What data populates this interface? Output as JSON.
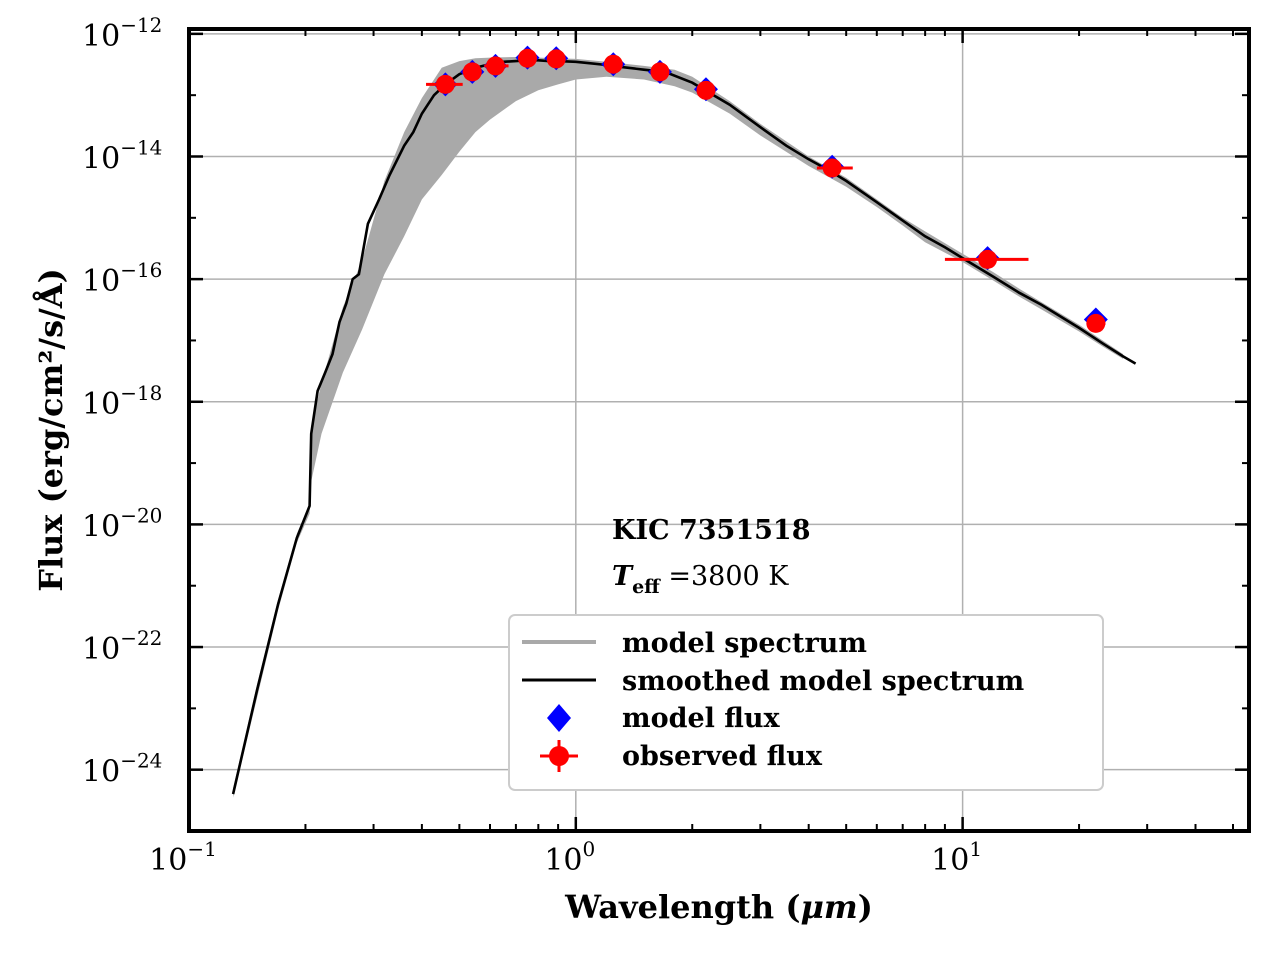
{
  "chart_data": {
    "type": "scatter",
    "xscale": "log",
    "yscale": "log",
    "xlim": [
      0.1,
      55
    ],
    "ylim": [
      1e-25,
      1.2e-12
    ],
    "xlabel_text": "Wavelength (",
    "xlabel_unit": "μm",
    "xlabel_close": ")",
    "ylabel": "Flux (erg/cm²/s/Å)",
    "x_ticks": [
      {
        "base": "10",
        "exp": "−1",
        "value": 0.1
      },
      {
        "base": "10",
        "exp": "0",
        "value": 1
      },
      {
        "base": "10",
        "exp": "1",
        "value": 10
      }
    ],
    "y_ticks": [
      {
        "base": "10",
        "exp": "−12",
        "value": 1e-12
      },
      {
        "base": "10",
        "exp": "−14",
        "value": 1e-14
      },
      {
        "base": "10",
        "exp": "−16",
        "value": 1e-16
      },
      {
        "base": "10",
        "exp": "−18",
        "value": 1e-18
      },
      {
        "base": "10",
        "exp": "−20",
        "value": 1e-20
      },
      {
        "base": "10",
        "exp": "−22",
        "value": 1e-22
      },
      {
        "base": "10",
        "exp": "−24",
        "value": 1e-24
      }
    ],
    "grid": true,
    "annotation": {
      "star": "KIC 7351518",
      "teff_symbol": "T",
      "teff_sub": "eff",
      "teff_eq": " =",
      "teff_value": "3800 K"
    },
    "legend": {
      "position": "lower-center",
      "entries": [
        {
          "label": "model spectrum",
          "marker": "line",
          "color": "#a9a9a9"
        },
        {
          "label": "smoothed model spectrum",
          "marker": "line",
          "color": "#000000"
        },
        {
          "label": "model flux",
          "marker": "diamond",
          "color": "#0000ff"
        },
        {
          "label": "observed flux",
          "marker": "errorbar-circle",
          "color": "#ff0000"
        }
      ]
    },
    "series": [
      {
        "name": "smoothed model spectrum",
        "color": "#000000",
        "x": [
          0.13,
          0.15,
          0.17,
          0.19,
          0.205,
          0.207,
          0.215,
          0.225,
          0.235,
          0.245,
          0.255,
          0.265,
          0.275,
          0.29,
          0.31,
          0.33,
          0.36,
          0.38,
          0.4,
          0.43,
          0.46,
          0.5,
          0.55,
          0.6,
          0.65,
          0.7,
          0.75,
          0.8,
          0.85,
          0.9,
          1.0,
          1.1,
          1.2,
          1.3,
          1.5,
          1.7,
          2.0,
          2.5,
          3.0,
          3.5,
          4.0,
          4.5,
          5.0,
          6.0,
          7.0,
          8.0,
          9.0,
          10.0,
          12.0,
          14.0,
          16.0,
          20.0,
          23.0,
          26.0,
          28.0
        ],
        "y": [
          4e-25,
          2e-23,
          5e-22,
          6e-21,
          2e-20,
          3e-19,
          1.5e-18,
          3e-18,
          6e-18,
          2e-17,
          4e-17,
          1e-16,
          1.2e-16,
          8e-16,
          2e-15,
          5e-15,
          1.5e-14,
          2.5e-14,
          5e-14,
          1e-13,
          1.5e-13,
          2.2e-13,
          2.8e-13,
          3.2e-13,
          3.5e-13,
          3.6e-13,
          3.7e-13,
          3.7e-13,
          3.6e-13,
          3.6e-13,
          3.5e-13,
          3.3e-13,
          3.1e-13,
          2.9e-13,
          2.6e-13,
          2.4e-13,
          1.6e-13,
          7e-14,
          3e-14,
          1.5e-14,
          9e-15,
          6e-15,
          4e-15,
          1.8e-15,
          9e-16,
          5e-16,
          3.3e-16,
          2.2e-16,
          1.1e-16,
          6e-17,
          3.8e-17,
          1.6e-17,
          9e-18,
          5.5e-18,
          4.2e-18
        ]
      },
      {
        "name": "model spectrum",
        "color": "#a9a9a9",
        "x": [
          0.13,
          0.15,
          0.17,
          0.19,
          0.205,
          0.207,
          0.22,
          0.25,
          0.28,
          0.32,
          0.36,
          0.4,
          0.45,
          0.5,
          0.55,
          0.6,
          0.7,
          0.8,
          0.9,
          1.0,
          1.2,
          1.5,
          1.8,
          2.0,
          2.5,
          3.0,
          4.0,
          5.0,
          6.0,
          7.0,
          8.0,
          10.0,
          12.0,
          14.0,
          16.0,
          20.0,
          23.0,
          26.0
        ],
        "y_upper": [
          5e-25,
          2.5e-23,
          6e-22,
          7e-21,
          2.2e-20,
          4e-19,
          2e-18,
          3.5e-17,
          2e-16,
          4e-15,
          2.5e-14,
          9e-14,
          2.8e-13,
          3.6e-13,
          4e-13,
          4.1e-13,
          4.2e-13,
          4.1e-13,
          4e-13,
          3.9e-13,
          3.5e-13,
          3e-13,
          2.6e-13,
          2e-13,
          8e-14,
          3.4e-14,
          1e-14,
          4.5e-15,
          2e-15,
          1e-15,
          6e-16,
          2.6e-16,
          1.3e-16,
          7e-17,
          4.2e-17,
          1.8e-17,
          1e-17,
          6e-18
        ],
        "y_lower": [
          3.5e-25,
          1.5e-23,
          4e-22,
          5e-21,
          1.5e-20,
          5e-20,
          3e-19,
          3e-18,
          1.5e-17,
          1.2e-16,
          5e-16,
          2e-15,
          5e-15,
          1.2e-14,
          2.5e-14,
          4e-14,
          8e-14,
          1.2e-13,
          1.5e-13,
          1.8e-13,
          2e-13,
          1.8e-13,
          1.4e-13,
          1.1e-13,
          5e-14,
          2.2e-14,
          7e-15,
          3.2e-15,
          1.5e-15,
          7.5e-16,
          4e-16,
          1.9e-16,
          9.5e-17,
          5.2e-17,
          3.2e-17,
          1.4e-17,
          8e-18,
          5e-18
        ]
      },
      {
        "name": "model flux",
        "color": "#0000ff",
        "points": [
          {
            "x": 0.46,
            "y": 1.5e-13
          },
          {
            "x": 0.54,
            "y": 2.4e-13
          },
          {
            "x": 0.62,
            "y": 3e-13
          },
          {
            "x": 0.75,
            "y": 4.1e-13
          },
          {
            "x": 0.89,
            "y": 4e-13
          },
          {
            "x": 1.25,
            "y": 3.2e-13
          },
          {
            "x": 1.65,
            "y": 2.4e-13
          },
          {
            "x": 2.17,
            "y": 1.25e-13
          },
          {
            "x": 4.6,
            "y": 6.8e-15
          },
          {
            "x": 11.6,
            "y": 2.2e-16
          },
          {
            "x": 22.1,
            "y": 2.2e-17
          }
        ]
      },
      {
        "name": "observed flux",
        "color": "#ff0000",
        "points": [
          {
            "x": 0.46,
            "y": 1.5e-13,
            "xerr": [
              0.41,
              0.51
            ]
          },
          {
            "x": 0.54,
            "y": 2.4e-13,
            "xerr": [
              0.51,
              0.57
            ]
          },
          {
            "x": 0.62,
            "y": 3e-13,
            "xerr": [
              0.58,
              0.67
            ]
          },
          {
            "x": 0.75,
            "y": 4e-13,
            "xerr": [
              0.72,
              0.79
            ]
          },
          {
            "x": 0.89,
            "y": 3.9e-13,
            "xerr": [
              0.85,
              0.93
            ]
          },
          {
            "x": 1.25,
            "y": 3.2e-13,
            "xerr": [
              1.2,
              1.3
            ]
          },
          {
            "x": 1.65,
            "y": 2.4e-13,
            "xerr": [
              1.58,
              1.72
            ]
          },
          {
            "x": 2.17,
            "y": 1.2e-13,
            "xerr": [
              2.1,
              2.25
            ]
          },
          {
            "x": 4.6,
            "y": 6.5e-15,
            "xerr": [
              4.2,
              5.2
            ]
          },
          {
            "x": 11.6,
            "y": 2.1e-16,
            "xerr": [
              9.0,
              14.8
            ]
          },
          {
            "x": 22.1,
            "y": 1.9e-17,
            "xerr": [
              21.0,
              23.4
            ]
          }
        ]
      }
    ]
  }
}
